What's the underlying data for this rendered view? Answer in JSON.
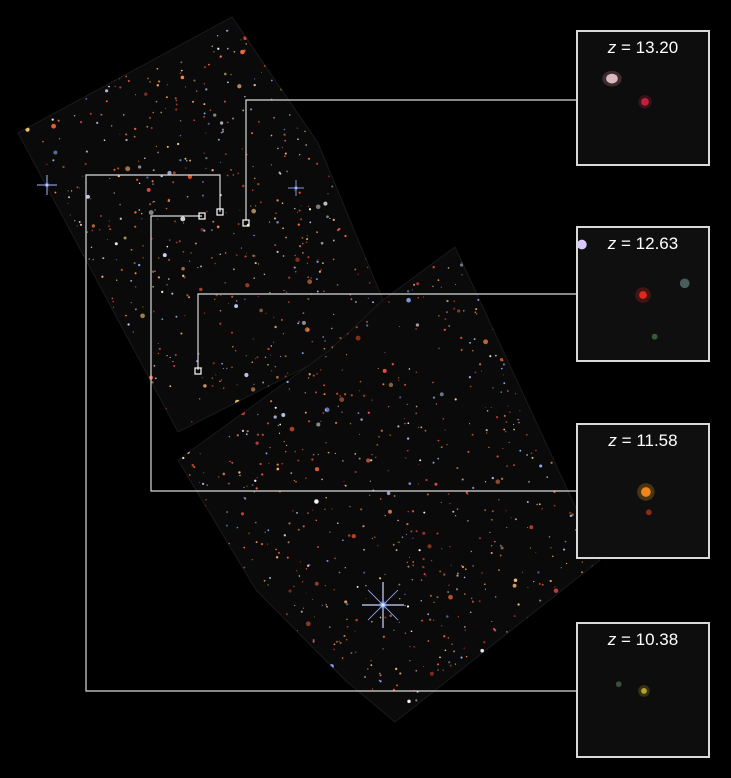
{
  "colors": {
    "background": "#000000",
    "connector": "#d9d9d9",
    "field_faint": "#0a0a0a"
  },
  "insets": [
    {
      "id": "z1320",
      "variable": "z",
      "equals": "=",
      "redshift": "13.20",
      "dot_color": "#c0213a"
    },
    {
      "id": "z1263",
      "variable": "z",
      "equals": "=",
      "redshift": "12.63",
      "dot_color": "#e0281c"
    },
    {
      "id": "z1158",
      "variable": "z",
      "equals": "=",
      "redshift": "11.58",
      "dot_color": "#f07a1c"
    },
    {
      "id": "z1038",
      "variable": "z",
      "equals": "=",
      "redshift": "10.38",
      "dot_color": "#b8a12a"
    }
  ]
}
